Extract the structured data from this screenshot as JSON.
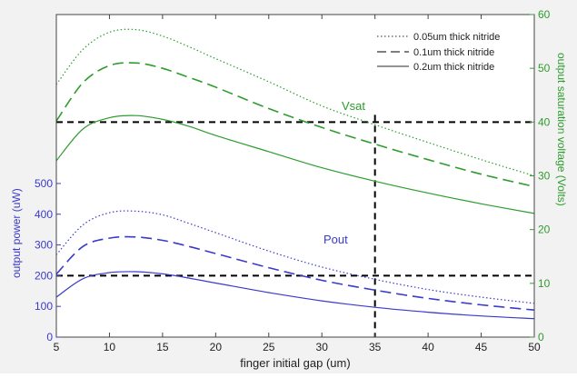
{
  "chart_data": {
    "type": "line",
    "xlabel": "finger initial gap (um)",
    "ylabel_left": "output power (uW)",
    "ylabel_right": "output saturation voltage (Volts)",
    "x_ticks": [
      5,
      10,
      15,
      20,
      25,
      30,
      35,
      40,
      45,
      50
    ],
    "y_left_ticks": [
      0,
      100,
      200,
      300,
      400,
      500
    ],
    "y_right_ticks": [
      0,
      10,
      20,
      30,
      40,
      50,
      60
    ],
    "xlim": [
      5,
      50
    ],
    "ylim_left": [
      0,
      1050
    ],
    "ylim_right": [
      0,
      60
    ],
    "annotations": [
      {
        "text": "Vsat",
        "color": "#2e9c2e"
      },
      {
        "text": "Pout",
        "color": "#3a3acc"
      }
    ],
    "reference_lines": {
      "power_uW": 200,
      "voltage_V": 40,
      "gap_um": 35
    },
    "legend": {
      "position": "top-right",
      "entries": [
        {
          "label": "0.05um thick nitride",
          "style": "dotted"
        },
        {
          "label": "0.1um thick nitride",
          "style": "dashed"
        },
        {
          "label": "0.2um thick nitride",
          "style": "solid"
        }
      ]
    },
    "colors": {
      "power": "#3a3acc",
      "voltage": "#2e9c2e",
      "refline": "#000000"
    },
    "x": [
      5,
      7.5,
      10,
      12.5,
      15,
      17.5,
      20,
      25,
      30,
      35,
      40,
      45,
      50
    ],
    "series": [
      {
        "group": "Vsat",
        "axis": "right",
        "style": "dotted",
        "values": [
          47,
          53.5,
          56.7,
          57.2,
          56,
          54,
          51.8,
          47.5,
          43,
          39.5,
          36.2,
          33,
          30
        ]
      },
      {
        "group": "Vsat",
        "axis": "right",
        "style": "dashed",
        "values": [
          40.2,
          47.3,
          50.5,
          51,
          50,
          48.3,
          46.5,
          42.5,
          39,
          35.9,
          33,
          30.3,
          28
        ]
      },
      {
        "group": "Vsat",
        "axis": "right",
        "style": "solid",
        "values": [
          32.8,
          38.7,
          40.8,
          41.2,
          40.5,
          39.2,
          37.5,
          34.5,
          31.5,
          29,
          26.8,
          24.8,
          23
        ]
      },
      {
        "group": "Pout",
        "axis": "left",
        "style": "dotted",
        "values": [
          268,
          365,
          405,
          410,
          398,
          370,
          340,
          280,
          228,
          188,
          155,
          130,
          110
        ]
      },
      {
        "group": "Pout",
        "axis": "left",
        "style": "dashed",
        "values": [
          205,
          295,
          322,
          326,
          315,
          295,
          272,
          226,
          185,
          153,
          126,
          105,
          88
        ]
      },
      {
        "group": "Pout",
        "axis": "left",
        "style": "solid",
        "values": [
          130,
          190,
          210,
          213,
          206,
          192,
          176,
          145,
          118,
          97,
          81,
          69,
          60
        ]
      }
    ]
  }
}
